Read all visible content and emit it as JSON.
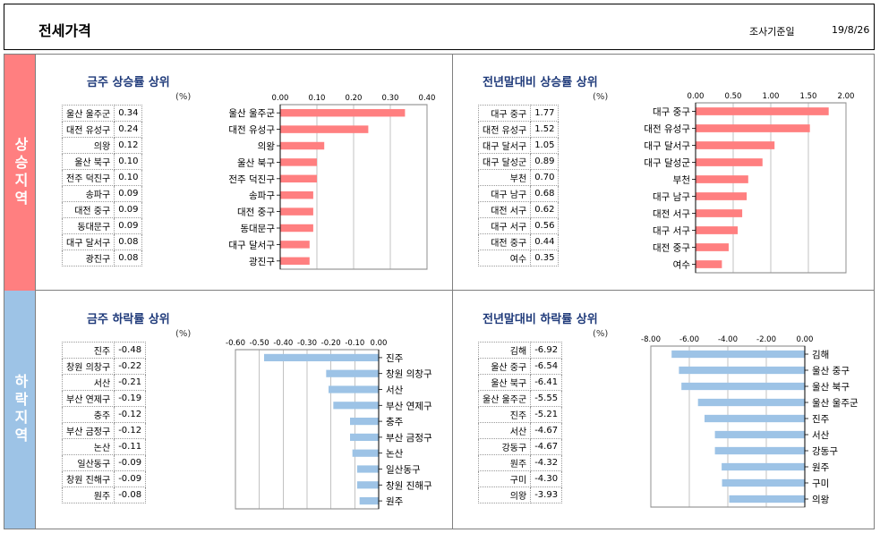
{
  "header": {
    "title": "전세가격",
    "date_label": "조사기준일",
    "date_value": "19/8/26"
  },
  "sides": {
    "up": "상승지역",
    "down": "하락지역"
  },
  "colors": {
    "up": "#ff7f80",
    "down": "#9dc3e6"
  },
  "unit": "(%)",
  "chart_data": [
    {
      "type": "bar",
      "orientation": "horizontal",
      "title": "금주 상승률 상위",
      "categories": [
        "울산 울주군",
        "대전 유성구",
        "의왕",
        "울산 북구",
        "전주 덕진구",
        "송파구",
        "대전 중구",
        "동대문구",
        "대구 달서구",
        "광진구"
      ],
      "values": [
        0.34,
        0.24,
        0.12,
        0.1,
        0.1,
        0.09,
        0.09,
        0.09,
        0.08,
        0.08
      ],
      "xlim": [
        0,
        0.4
      ],
      "ticks": [
        0,
        0.1,
        0.2,
        0.3,
        0.4
      ],
      "tick_labels": [
        "0.00",
        "0.10",
        "0.20",
        "0.30",
        "0.40"
      ],
      "grid": true,
      "color": "#ff7f80"
    },
    {
      "type": "bar",
      "orientation": "horizontal",
      "title": "전년말대비 상승률 상위",
      "categories": [
        "대구 중구",
        "대전 유성구",
        "대구 달서구",
        "대구 달성군",
        "부천",
        "대구 남구",
        "대전 서구",
        "대구 서구",
        "대전 중구",
        "여수"
      ],
      "values": [
        1.77,
        1.52,
        1.05,
        0.89,
        0.7,
        0.68,
        0.62,
        0.56,
        0.44,
        0.35
      ],
      "xlim": [
        0,
        2.0
      ],
      "ticks": [
        0,
        0.5,
        1.0,
        1.5,
        2.0
      ],
      "tick_labels": [
        "0.00",
        "0.50",
        "1.00",
        "1.50",
        "2.00"
      ],
      "grid": true,
      "color": "#ff7f80"
    },
    {
      "type": "bar",
      "orientation": "horizontal",
      "title": "금주 하락률 상위",
      "categories": [
        "진주",
        "창원 의창구",
        "서산",
        "부산 연제구",
        "충주",
        "부산 금정구",
        "논산",
        "일산동구",
        "창원 진해구",
        "원주"
      ],
      "values": [
        -0.48,
        -0.22,
        -0.21,
        -0.19,
        -0.12,
        -0.12,
        -0.11,
        -0.09,
        -0.09,
        -0.08
      ],
      "xlim": [
        -0.6,
        0
      ],
      "ticks": [
        -0.6,
        -0.5,
        -0.4,
        -0.3,
        -0.2,
        -0.1,
        0
      ],
      "tick_labels": [
        "-0.60",
        "-0.50",
        "-0.40",
        "-0.30",
        "-0.20",
        "-0.10",
        "0.00"
      ],
      "grid": true,
      "color": "#9dc3e6"
    },
    {
      "type": "bar",
      "orientation": "horizontal",
      "title": "전년말대비 하락률 상위",
      "categories": [
        "김해",
        "울산 중구",
        "울산 북구",
        "울산 울주군",
        "진주",
        "서산",
        "강동구",
        "원주",
        "구미",
        "의왕"
      ],
      "values": [
        -6.92,
        -6.54,
        -6.41,
        -5.55,
        -5.21,
        -4.67,
        -4.67,
        -4.32,
        -4.3,
        -3.93
      ],
      "xlim": [
        -8.0,
        0
      ],
      "ticks": [
        -8,
        -6,
        -4,
        -2,
        0
      ],
      "tick_labels": [
        "-8.00",
        "-6.00",
        "-4.00",
        "-2.00",
        "0.00"
      ],
      "grid": true,
      "color": "#9dc3e6"
    }
  ]
}
